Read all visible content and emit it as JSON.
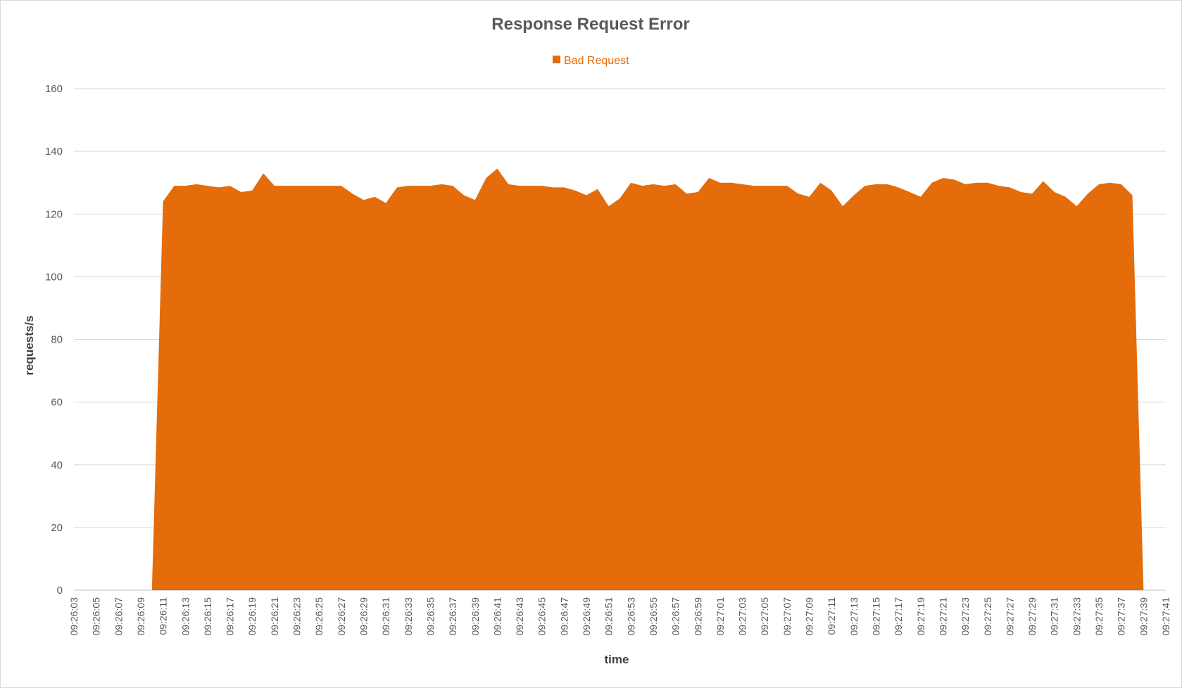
{
  "chart_data": {
    "type": "area",
    "title": "Response Request Error",
    "xlabel": "time",
    "ylabel": "requests/s",
    "ylim": [
      0,
      160
    ],
    "yticks": [
      0,
      20,
      40,
      60,
      80,
      100,
      120,
      140,
      160
    ],
    "grid": true,
    "legend_position": "top",
    "x_tick_labels": [
      "09:26:03",
      "09:26:05",
      "09:26:07",
      "09:26:09",
      "09:26:11",
      "09:26:13",
      "09:26:15",
      "09:26:17",
      "09:26:19",
      "09:26:21",
      "09:26:23",
      "09:26:25",
      "09:26:27",
      "09:26:29",
      "09:26:31",
      "09:26:33",
      "09:26:35",
      "09:26:37",
      "09:26:39",
      "09:26:41",
      "09:26:43",
      "09:26:45",
      "09:26:47",
      "09:26:49",
      "09:26:51",
      "09:26:53",
      "09:26:55",
      "09:26:57",
      "09:26:59",
      "09:27:01",
      "09:27:03",
      "09:27:05",
      "09:27:07",
      "09:27:09",
      "09:27:11",
      "09:27:13",
      "09:27:15",
      "09:27:17",
      "09:27:19",
      "09:27:21",
      "09:27:23",
      "09:27:25",
      "09:27:27",
      "09:27:29",
      "09:27:31",
      "09:27:33",
      "09:27:35",
      "09:27:37",
      "09:27:39",
      "09:27:41"
    ],
    "x": [
      "09:26:03",
      "09:26:04",
      "09:26:05",
      "09:26:06",
      "09:26:07",
      "09:26:08",
      "09:26:09",
      "09:26:10",
      "09:26:11",
      "09:26:12",
      "09:26:13",
      "09:26:14",
      "09:26:15",
      "09:26:16",
      "09:26:17",
      "09:26:18",
      "09:26:19",
      "09:26:20",
      "09:26:21",
      "09:26:22",
      "09:26:23",
      "09:26:24",
      "09:26:25",
      "09:26:26",
      "09:26:27",
      "09:26:28",
      "09:26:29",
      "09:26:30",
      "09:26:31",
      "09:26:32",
      "09:26:33",
      "09:26:34",
      "09:26:35",
      "09:26:36",
      "09:26:37",
      "09:26:38",
      "09:26:39",
      "09:26:40",
      "09:26:41",
      "09:26:42",
      "09:26:43",
      "09:26:44",
      "09:26:45",
      "09:26:46",
      "09:26:47",
      "09:26:48",
      "09:26:49",
      "09:26:50",
      "09:26:51",
      "09:26:52",
      "09:26:53",
      "09:26:54",
      "09:26:55",
      "09:26:56",
      "09:26:57",
      "09:26:58",
      "09:26:59",
      "09:27:00",
      "09:27:01",
      "09:27:02",
      "09:27:03",
      "09:27:04",
      "09:27:05",
      "09:27:06",
      "09:27:07",
      "09:27:08",
      "09:27:09",
      "09:27:10",
      "09:27:11",
      "09:27:12",
      "09:27:13",
      "09:27:14",
      "09:27:15",
      "09:27:16",
      "09:27:17",
      "09:27:18",
      "09:27:19",
      "09:27:20",
      "09:27:21",
      "09:27:22",
      "09:27:23",
      "09:27:24",
      "09:27:25",
      "09:27:26",
      "09:27:27",
      "09:27:28",
      "09:27:29",
      "09:27:30",
      "09:27:31",
      "09:27:32",
      "09:27:33",
      "09:27:34",
      "09:27:35",
      "09:27:36",
      "09:27:37",
      "09:27:38",
      "09:27:39",
      "09:27:40",
      "09:27:41"
    ],
    "series": [
      {
        "name": "Bad Request",
        "color": "#e46c0a",
        "values": [
          0,
          0,
          0,
          0,
          0,
          0,
          0,
          0,
          124,
          129,
          129,
          129.5,
          129,
          128.5,
          129,
          127,
          127.5,
          133,
          129,
          129,
          129,
          129,
          129,
          129,
          129,
          126.5,
          124.5,
          125.5,
          123.5,
          128.5,
          129,
          129,
          129,
          129.5,
          129,
          126,
          124.5,
          131.5,
          134.5,
          129.5,
          129,
          129,
          129,
          128.5,
          128.5,
          127.5,
          126,
          128,
          122.5,
          125,
          130,
          129,
          129.5,
          129,
          129.5,
          126.5,
          127,
          131.5,
          130,
          130,
          129.5,
          129,
          129,
          129,
          129,
          126.5,
          125.5,
          130,
          127.5,
          122.5,
          126,
          129,
          129.5,
          129.5,
          128.5,
          127,
          125.5,
          130,
          131.5,
          131,
          129.5,
          130,
          130,
          129,
          128.5,
          127,
          126.5,
          130.5,
          127,
          125.5,
          122.5,
          126.5,
          129.5,
          130,
          129.5,
          126,
          0,
          0,
          0
        ]
      }
    ]
  }
}
